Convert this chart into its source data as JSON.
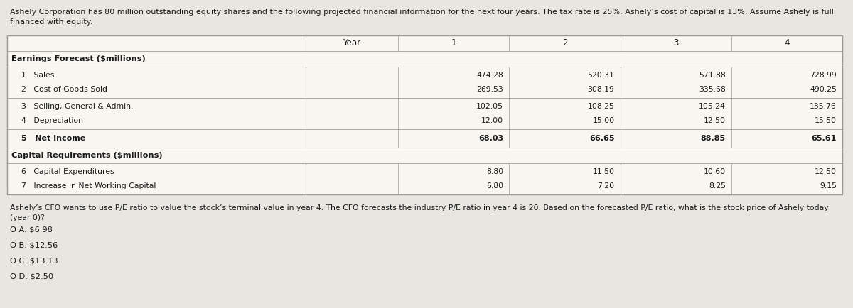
{
  "header_text_line1": "Ashely Corporation has 80 million outstanding equity shares and the following projected financial information for the next four years. The tax rate is 25%. Ashely’s cost of capital is 13%. Assume Ashely is full",
  "header_text_line2": "financed with equity.",
  "col_headers": [
    "Year",
    "1",
    "2",
    "3",
    "4"
  ],
  "section1_title": "Earnings Forecast ($millions)",
  "section1_rows": [
    {
      "num": "1",
      "label": "Sales",
      "vals": [
        "474.28",
        "520.31",
        "571.88",
        "728.99"
      ]
    },
    {
      "num": "2",
      "label": "Cost of Goods Sold",
      "vals": [
        "269.53",
        "308.19",
        "335.68",
        "490.25"
      ]
    },
    {
      "num": "3",
      "label": "Selling, General & Admin.",
      "vals": [
        "102.05",
        "108.25",
        "105.24",
        "135.76"
      ]
    },
    {
      "num": "4",
      "label": "Depreciation",
      "vals": [
        "12.00",
        "15.00",
        "12.50",
        "15.50"
      ]
    },
    {
      "num": "5",
      "label": "Net Income",
      "vals": [
        "68.03",
        "66.65",
        "88.85",
        "65.61"
      ]
    }
  ],
  "section2_title": "Capital Requirements ($millions)",
  "section2_rows": [
    {
      "num": "6",
      "label": "Capital Expenditures",
      "vals": [
        "8.80",
        "11.50",
        "10.60",
        "12.50"
      ]
    },
    {
      "num": "7",
      "label": "Increase in Net Working Capital",
      "vals": [
        "6.80",
        "7.20",
        "8.25",
        "9.15"
      ]
    }
  ],
  "question_text": "Ashely’s CFO wants to use P/E ratio to value the stock’s terminal value in year 4. The CFO forecasts the industry P/E ratio in year 4 is 20. Based on the forecasted P/E ratio, what is the stock price of Ashely today",
  "question_text2": "(year 0)?",
  "options": [
    {
      "label": "O A.",
      "value": "$6.98"
    },
    {
      "label": "O B.",
      "value": "$12.56"
    },
    {
      "label": "O C.",
      "value": "$13.13"
    },
    {
      "label": "O D.",
      "value": "$2.50"
    }
  ],
  "bg_color": "#e8e6e0",
  "table_bg": "#f5f3ee",
  "text_color": "#1a1a1a",
  "border_color": "#999999",
  "font_size_header": 8.0,
  "font_size_body": 7.8,
  "font_size_question": 7.8,
  "font_size_options": 8.2
}
